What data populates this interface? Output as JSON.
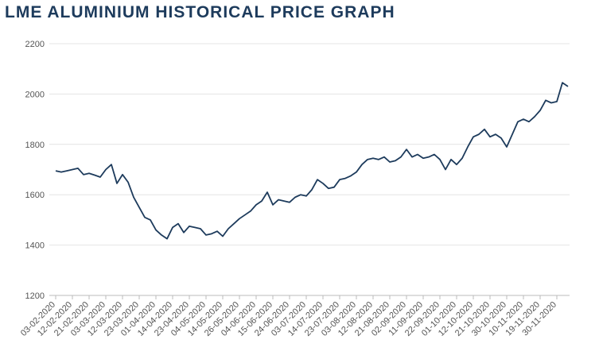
{
  "chart_data": {
    "type": "line",
    "title": "LME ALUMINIUM HISTORICAL PRICE GRAPH",
    "categories": [
      "03-02-2020",
      null,
      null,
      "12-02-2020",
      null,
      null,
      "21-02-2020",
      null,
      null,
      "03-03-2020",
      null,
      null,
      "12-03-2020",
      null,
      null,
      "23-03-2020",
      null,
      null,
      "01-04-2020",
      null,
      null,
      "14-04-2020",
      null,
      null,
      "23-04-2020",
      null,
      null,
      "04-05-2020",
      null,
      null,
      "14-05-2020",
      null,
      null,
      "26-05-2020",
      null,
      null,
      "04-06-2020",
      null,
      null,
      "15-06-2020",
      null,
      null,
      "24-06-2020",
      null,
      null,
      "03-07-2020",
      null,
      null,
      "14-07-2020",
      null,
      null,
      "23-07-2020",
      null,
      null,
      "03-08-2020",
      null,
      null,
      "12-08-2020",
      null,
      null,
      "21-08-2020",
      null,
      null,
      "02-09-2020",
      null,
      null,
      "11-09-2020",
      null,
      null,
      "22-09-2020",
      null,
      null,
      "01-10-2020",
      null,
      null,
      "12-10-2020",
      null,
      null,
      "21-10-2020",
      null,
      null,
      "30-10-2020",
      null,
      null,
      "10-11-2020",
      null,
      null,
      "19-11-2020",
      null,
      null,
      "30-11-2020",
      null,
      null
    ],
    "series": [
      {
        "color": "#1d3b5c",
        "values": [
          1695,
          1690,
          1695,
          1700,
          1705,
          1680,
          1685,
          1678,
          1670,
          1700,
          1720,
          1645,
          1680,
          1650,
          1590,
          1550,
          1510,
          1500,
          1460,
          1440,
          1425,
          1470,
          1485,
          1450,
          1475,
          1470,
          1465,
          1440,
          1445,
          1455,
          1435,
          1465,
          1485,
          1505,
          1520,
          1535,
          1560,
          1575,
          1610,
          1560,
          1580,
          1575,
          1570,
          1590,
          1600,
          1595,
          1620,
          1660,
          1645,
          1625,
          1630,
          1660,
          1665,
          1675,
          1690,
          1720,
          1740,
          1745,
          1740,
          1750,
          1730,
          1735,
          1750,
          1780,
          1750,
          1760,
          1745,
          1750,
          1760,
          1740,
          1700,
          1740,
          1720,
          1745,
          1790,
          1830,
          1840,
          1860,
          1830,
          1840,
          1825,
          1790,
          1840,
          1890,
          1900,
          1890,
          1910,
          1935,
          1975,
          1965,
          1970,
          2045,
          2030
        ]
      }
    ],
    "ylim": [
      1200,
      2200
    ],
    "yticks": [
      1200,
      1400,
      1600,
      1800,
      2000,
      2200
    ],
    "grid": true
  }
}
